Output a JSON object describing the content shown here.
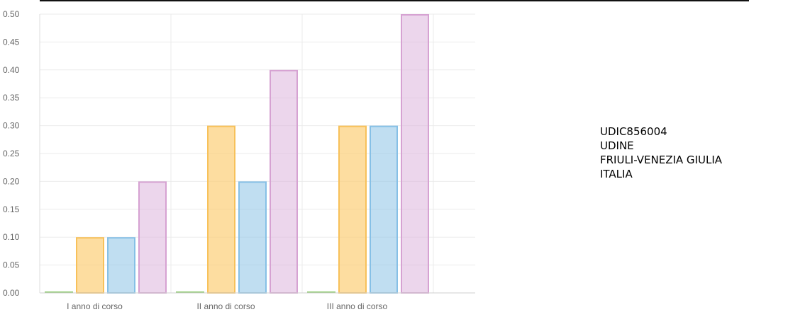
{
  "chart_data": {
    "type": "bar",
    "categories": [
      "I anno di corso",
      "II anno di corso",
      "III anno di corso"
    ],
    "series": [
      {
        "values": [
          0.0,
          0.0,
          0.0
        ],
        "color": "#8fcb70"
      },
      {
        "values": [
          0.1,
          0.3,
          0.3
        ],
        "color": "#f7c15a"
      },
      {
        "values": [
          0.1,
          0.2,
          0.3
        ],
        "color": "#86c0e6"
      },
      {
        "values": [
          0.2,
          0.4,
          0.5
        ],
        "color": "#d6a2d2"
      }
    ],
    "series_fill": [
      "rgba(143,203,112,0.35)",
      "rgba(252,207,120,0.70)",
      "rgba(150,200,232,0.60)",
      "rgba(220,180,220,0.55)"
    ],
    "ylim": [
      0,
      0.5
    ],
    "yticks": [
      "0.00",
      "0.05",
      "0.10",
      "0.15",
      "0.20",
      "0.25",
      "0.30",
      "0.35",
      "0.40",
      "0.45",
      "0.50"
    ],
    "grid": true,
    "title": "",
    "xlabel": "",
    "ylabel": ""
  },
  "info": {
    "lines": [
      "UDIC856004",
      "UDINE",
      "FRIULI-VENEZIA GIULIA",
      "ITALIA"
    ]
  }
}
